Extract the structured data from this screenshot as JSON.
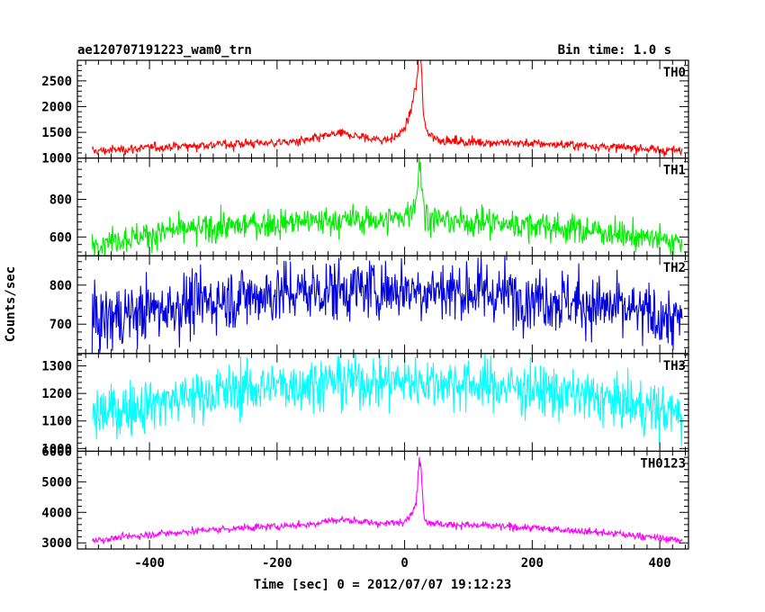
{
  "header": {
    "left_title": "ae120707191223_wam0_trn",
    "right_title": "Bin time: 1.0 s"
  },
  "chart_data": {
    "type": "line",
    "title": "ae120707191223_wam0_trn",
    "subtitle": "Bin time: 1.0 s",
    "xlabel": "Time [sec] 0 = 2012/07/07 19:12:23",
    "ylabel": "Counts/sec",
    "xlim": [
      -513,
      445
    ],
    "x_ticks": [
      -400,
      -200,
      0,
      200,
      400
    ],
    "x_range": [
      -490,
      435
    ],
    "grid": false,
    "panels": [
      {
        "name": "TH0",
        "color": "#ff0000",
        "ylim": [
          1000,
          2900
        ],
        "y_ticks": [
          1000,
          1500,
          2000,
          2500
        ],
        "baseline_edge": 1130,
        "baseline_center": 1330,
        "noise": 45,
        "peak_time": 24,
        "peak_value": 2900,
        "peak_width": 3,
        "shoulder_value": 1250,
        "shoulder_width": 12,
        "spikes": [
          {
            "x": -268,
            "y": 1120
          }
        ],
        "bump": {
          "x": -100,
          "y": 140,
          "width": 30
        }
      },
      {
        "name": "TH1",
        "color": "#00ee00",
        "ylim": [
          500,
          1020
        ],
        "y_ticks": [
          600,
          800
        ],
        "baseline_edge": 570,
        "baseline_center": 690,
        "noise": 38,
        "peak_time": 24,
        "peak_value": 1000,
        "peak_width": 3,
        "shoulder_value": 110,
        "shoulder_width": 12,
        "spikes": [],
        "bump": {
          "x": 0,
          "y": 0,
          "width": 1
        }
      },
      {
        "name": "TH2",
        "color": "#0000dd",
        "ylim": [
          625,
          875
        ],
        "y_ticks": [
          700,
          800
        ],
        "baseline_edge": 705,
        "baseline_center": 790,
        "noise": 40,
        "peak_time": 0,
        "peak_value": 0,
        "peak_width": 1,
        "shoulder_value": 0,
        "shoulder_width": 1,
        "spikes": [],
        "bump": {
          "x": 0,
          "y": 0,
          "width": 1
        }
      },
      {
        "name": "TH3",
        "color": "#00ffff",
        "ylim": [
          990,
          1345
        ],
        "y_ticks": [
          1000,
          1100,
          1200,
          1300
        ],
        "baseline_edge": 1120,
        "baseline_center": 1245,
        "noise": 48,
        "peak_time": 0,
        "peak_value": 0,
        "peak_width": 1,
        "shoulder_value": 0,
        "shoulder_width": 1,
        "spikes": [],
        "bump": {
          "x": 0,
          "y": 0,
          "width": 1
        }
      },
      {
        "name": "TH0123",
        "color": "#ff00ff",
        "ylim": [
          2800,
          6000
        ],
        "y_ticks": [
          3000,
          4000,
          5000,
          6000
        ],
        "baseline_edge": 3080,
        "baseline_center": 3620,
        "noise": 60,
        "peak_time": 24,
        "peak_value": 5900,
        "peak_width": 3,
        "shoulder_value": 650,
        "shoulder_width": 12,
        "spikes": [],
        "bump": {
          "x": -100,
          "y": 150,
          "width": 30
        }
      }
    ]
  }
}
